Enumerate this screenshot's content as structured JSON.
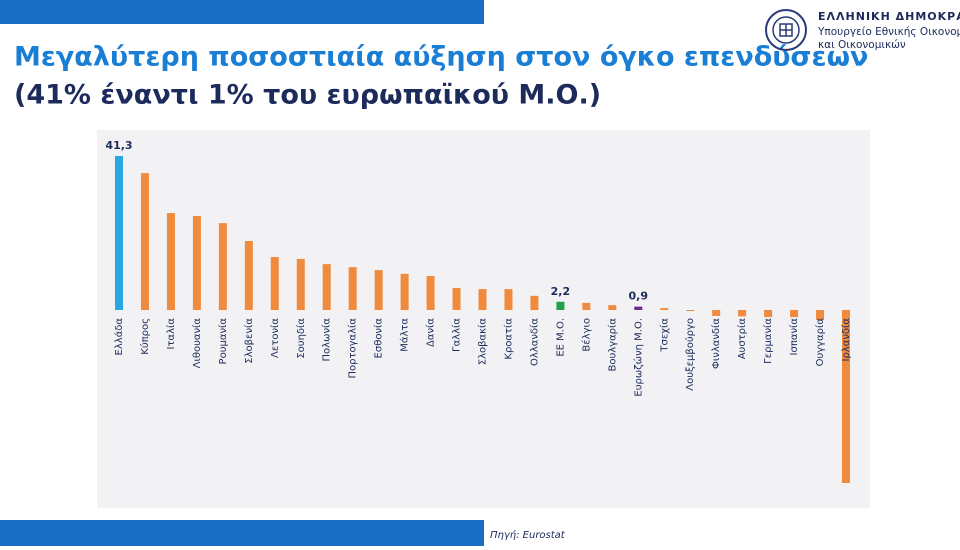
{
  "header": {
    "title": "Μεγαλύτερη ποσοστιαία αύξηση στον όγκο επενδύσεων",
    "subtitle": "(41% έναντι 1% του ευρωπαϊκού Μ.Ο.)"
  },
  "logo": {
    "country": "ΕΛΛΗΝΙΚΗ ΔΗΜΟΚΡΑΤΙΑ",
    "ministry_line1": "Υπουργείο Εθνικής Οικονομίας",
    "ministry_line2": "και Οικονομικών"
  },
  "source": "Πηγή: Eurostat",
  "chart_data": {
    "type": "bar",
    "categories": [
      "Ελλάδα",
      "Κύπρος",
      "Ιταλία",
      "Λιθουανία",
      "Ρουμανία",
      "Σλοβενία",
      "Λετονία",
      "Σουηδία",
      "Πολωνία",
      "Πορτογαλία",
      "Εσθονία",
      "Μάλτα",
      "Δανία",
      "Γαλλία",
      "Σλοβακία",
      "Κροατία",
      "Ολλανδία",
      "ΕΕ Μ.Ο.",
      "Βέλγιο",
      "Βουλγαρία",
      "Ευρωζώνη Μ.Ο.",
      "Τσεχία",
      "Λουξεμβούργο",
      "Φινλανδία",
      "Αυστρία",
      "Γερμανία",
      "Ισπανία",
      "Ουγγαρία",
      "Ιρλανδία"
    ],
    "values": [
      41.3,
      36.7,
      26.0,
      25.2,
      23.3,
      18.5,
      14.2,
      13.7,
      12.3,
      11.5,
      10.7,
      9.7,
      9.1,
      5.9,
      5.6,
      5.6,
      3.8,
      2.2,
      1.9,
      1.3,
      0.9,
      0.5,
      -0.2,
      -1.6,
      -1.7,
      -1.9,
      -1.9,
      -2.7,
      -46.4
    ],
    "value_labels": [
      "41,3",
      null,
      null,
      null,
      null,
      null,
      null,
      null,
      null,
      null,
      null,
      null,
      null,
      null,
      null,
      null,
      null,
      "2,2",
      null,
      null,
      "0,9",
      null,
      null,
      null,
      null,
      null,
      null,
      null,
      null
    ],
    "colors": [
      "#29a8e0",
      "#f08a3c",
      "#f08a3c",
      "#f08a3c",
      "#f08a3c",
      "#f08a3c",
      "#f08a3c",
      "#f08a3c",
      "#f08a3c",
      "#f08a3c",
      "#f08a3c",
      "#f08a3c",
      "#f08a3c",
      "#f08a3c",
      "#f08a3c",
      "#f08a3c",
      "#f08a3c",
      "#1fa34a",
      "#f08a3c",
      "#f08a3c",
      "#6a2c91",
      "#f08a3c",
      "#f08a3c",
      "#f08a3c",
      "#f08a3c",
      "#f08a3c",
      "#f08a3c",
      "#f08a3c",
      "#f08a3c"
    ],
    "ylim": [
      -46.4,
      41.3
    ]
  }
}
